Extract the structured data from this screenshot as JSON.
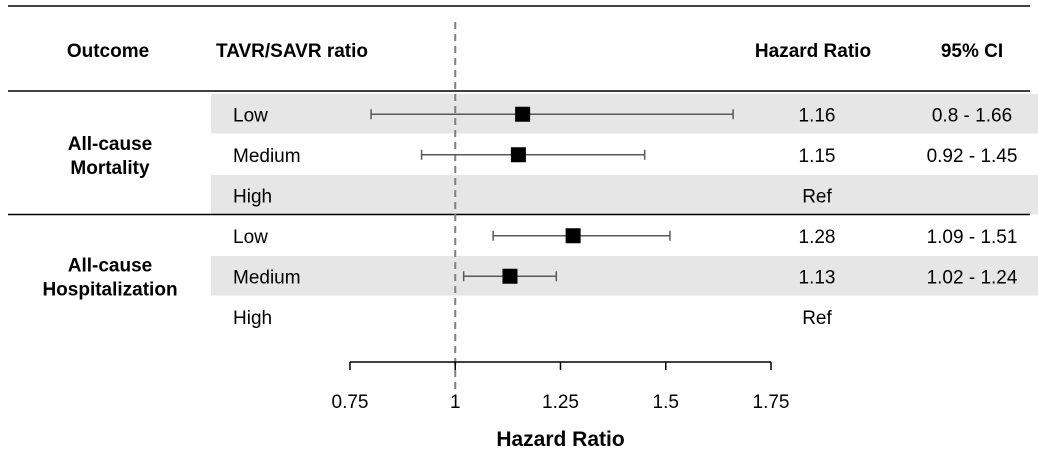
{
  "chart_data": {
    "type": "forest",
    "headers": {
      "outcome": "Outcome",
      "ratio": "TAVR/SAVR ratio",
      "hr": "Hazard Ratio",
      "ci": "95% CI"
    },
    "groups": [
      {
        "name": [
          "All-cause",
          "Mortality"
        ],
        "rows": [
          {
            "label": "Low",
            "hr": 1.16,
            "lo": 0.8,
            "hi": 1.66,
            "hr_text": "1.16",
            "ci_text": "0.8 - 1.66",
            "shaded": true
          },
          {
            "label": "Medium",
            "hr": 1.15,
            "lo": 0.92,
            "hi": 1.45,
            "hr_text": "1.15",
            "ci_text": "0.92 - 1.45",
            "shaded": false
          },
          {
            "label": "High",
            "hr": null,
            "lo": null,
            "hi": null,
            "hr_text": "Ref",
            "ci_text": "",
            "shaded": true
          }
        ]
      },
      {
        "name": [
          "All-cause",
          "Hospitalization"
        ],
        "rows": [
          {
            "label": "Low",
            "hr": 1.28,
            "lo": 1.09,
            "hi": 1.51,
            "hr_text": "1.28",
            "ci_text": "1.09 - 1.51",
            "shaded": false
          },
          {
            "label": "Medium",
            "hr": 1.13,
            "lo": 1.02,
            "hi": 1.24,
            "hr_text": "1.13",
            "ci_text": "1.02 - 1.24",
            "shaded": true
          },
          {
            "label": "High",
            "hr": null,
            "lo": null,
            "hi": null,
            "hr_text": "Ref",
            "ci_text": "",
            "shaded": false
          }
        ]
      }
    ],
    "xlim": [
      0.75,
      1.75
    ],
    "xticks": [
      0.75,
      1,
      1.25,
      1.5,
      1.75
    ],
    "xtick_labels": [
      "0.75",
      "1",
      "1.25",
      "1.5",
      "1.75"
    ],
    "reference_line": 1,
    "xlabel": "Hazard Ratio",
    "colors": {
      "shade": "#e6e6e6",
      "marker": "#000000",
      "ci_line": "#595959",
      "ref_line": "#808080"
    }
  }
}
